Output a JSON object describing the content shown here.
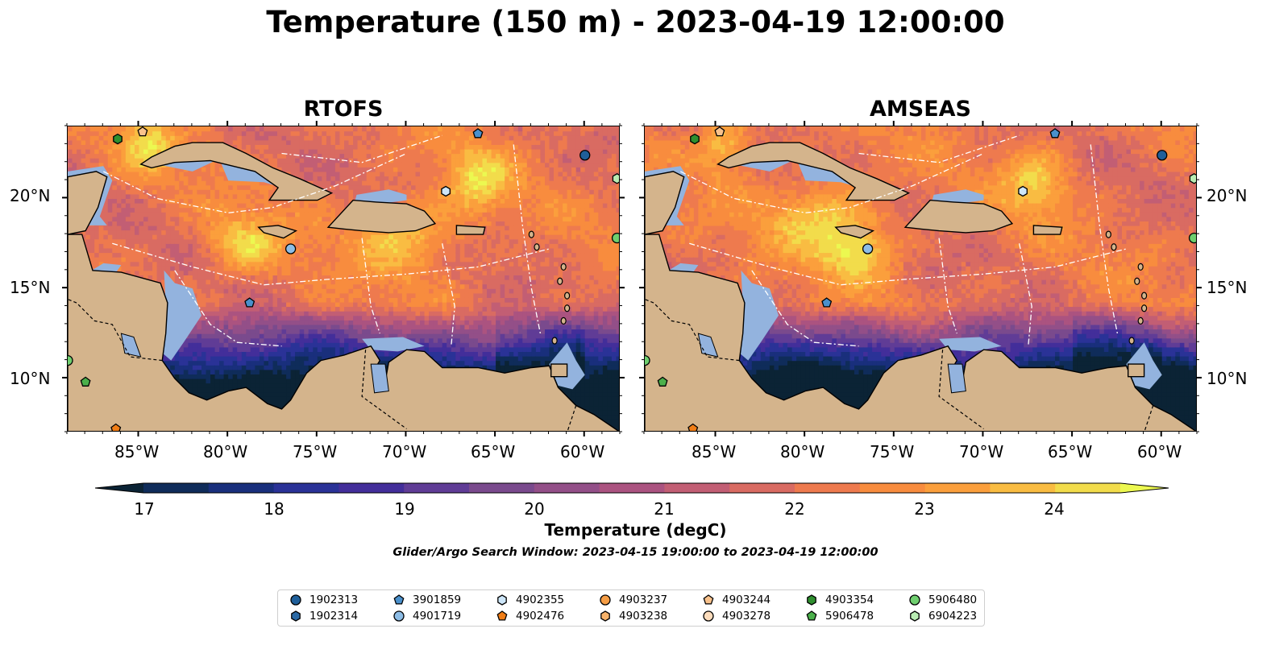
{
  "figure": {
    "title": "Temperature (150 m) - 2023-04-19 12:00:00",
    "search_window": "Glider/Argo Search Window: 2023-04-15 19:00:00 to 2023-04-19 12:00:00"
  },
  "panels": [
    {
      "title": "RTOFS"
    },
    {
      "title": "AMSEAS"
    }
  ],
  "axes": {
    "lon_ticks": [
      "85°W",
      "80°W",
      "75°W",
      "70°W",
      "65°W",
      "60°W"
    ],
    "lat_ticks": [
      "20°N",
      "15°N",
      "10°N"
    ],
    "lon_range": [
      -89,
      -58
    ],
    "lat_range": [
      7,
      24
    ]
  },
  "colorbar": {
    "label": "Temperature (degC)",
    "ticks": [
      "17",
      "18",
      "19",
      "20",
      "21",
      "22",
      "23",
      "24"
    ],
    "min": 16.75,
    "max": 24.5,
    "step": 0.5,
    "extend": "both",
    "colors": [
      "#0b2335",
      "#0f2c5a",
      "#192f7c",
      "#2a3297",
      "#432e9a",
      "#603c96",
      "#7a4a8d",
      "#934f88",
      "#ab5380",
      "#c25e74",
      "#d96b62",
      "#ee7a4e",
      "#f88c3e",
      "#fb9f3c",
      "#f9bc42",
      "#f2dc4b",
      "#ecf850"
    ]
  },
  "legend": [
    {
      "id": "1902313",
      "marker": "circle",
      "color": "#1f5f9a"
    },
    {
      "id": "1902314",
      "marker": "hexagon",
      "color": "#2b6aa6"
    },
    {
      "id": "3901859",
      "marker": "pentagon",
      "color": "#4a90cc"
    },
    {
      "id": "4901719",
      "marker": "circle",
      "color": "#8dbde6"
    },
    {
      "id": "4902355",
      "marker": "hexagon",
      "color": "#cde6f9"
    },
    {
      "id": "4902476",
      "marker": "pentagon",
      "color": "#f07d16"
    },
    {
      "id": "4903237",
      "marker": "circle",
      "color": "#f59d45"
    },
    {
      "id": "4903238",
      "marker": "hexagon",
      "color": "#f7b26a"
    },
    {
      "id": "4903244",
      "marker": "pentagon",
      "color": "#f9c28c"
    },
    {
      "id": "4903278",
      "marker": "circle",
      "color": "#fcdcbc"
    },
    {
      "id": "4903354",
      "marker": "hexagon",
      "color": "#2f8f2f"
    },
    {
      "id": "5906478",
      "marker": "pentagon",
      "color": "#4bb04b"
    },
    {
      "id": "5906480",
      "marker": "circle",
      "color": "#6fcf6f"
    },
    {
      "id": "6904223",
      "marker": "hexagon",
      "color": "#b9ecb3"
    }
  ],
  "platforms": [
    {
      "id": "1902313",
      "lon": -60,
      "lat": 22.4
    },
    {
      "id": "3901859",
      "lon": -66,
      "lat": 23.6
    },
    {
      "id": "4902355",
      "lon": -67.8,
      "lat": 20.4
    },
    {
      "id": "6904223",
      "lon": -58.2,
      "lat": 21.1
    },
    {
      "id": "5906480",
      "lon": -58.2,
      "lat": 17.8
    },
    {
      "id": "4901719",
      "lon": -76.5,
      "lat": 17.2
    },
    {
      "id": "3901859",
      "lon": -78.8,
      "lat": 14.2
    },
    {
      "id": "4903354",
      "lon": -86.2,
      "lat": 23.3
    },
    {
      "id": "4903244",
      "lon": -84.8,
      "lat": 23.7
    },
    {
      "id": "5906478",
      "lon": -88,
      "lat": 9.8
    },
    {
      "id": "5906480",
      "lon": -89,
      "lat": 11
    },
    {
      "id": "4902476",
      "lon": -86.3,
      "lat": 7.2
    }
  ],
  "chart_data": [
    {
      "type": "heatmap",
      "title": "RTOFS",
      "variable": "Temperature (150 m)",
      "units": "degC",
      "x_range": [
        -89,
        -58
      ],
      "y_range": [
        7,
        24
      ],
      "note_values": {
        "northern_caribbean_range": [
          21,
          23.5
        ],
        "warm_core_lon_lat": [
          -70,
          18
        ],
        "warm_core_value": 24.3,
        "southern_basin_min": 17
      }
    },
    {
      "type": "heatmap",
      "title": "AMSEAS",
      "variable": "Temperature (150 m)",
      "units": "degC",
      "x_range": [
        -89,
        -58
      ],
      "y_range": [
        7,
        24
      ],
      "note_values": {
        "northern_caribbean_range": [
          21,
          23.5
        ],
        "warm_core_lon_lat": [
          -79,
          19
        ],
        "warm_core_value": 24.4,
        "southern_basin_min": 17
      }
    }
  ]
}
